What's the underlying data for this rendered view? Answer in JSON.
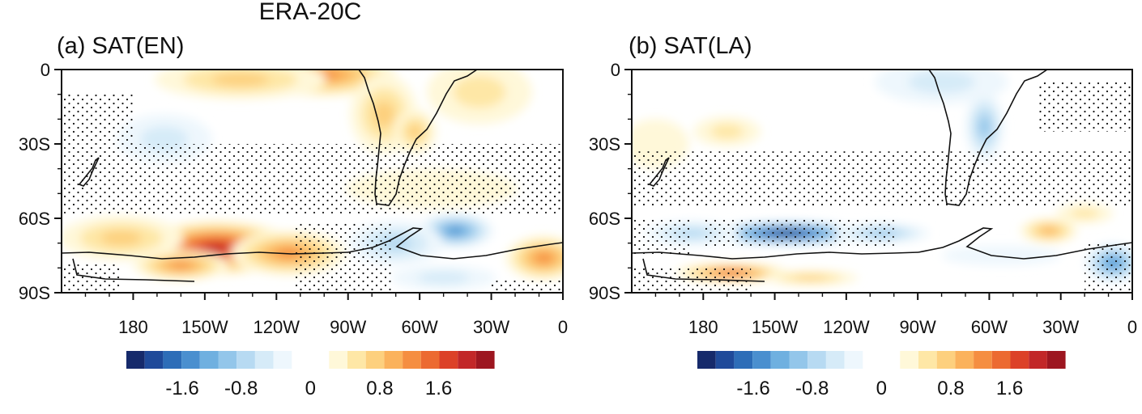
{
  "figure_title": "ERA-20C",
  "chart_data": [
    {
      "type": "heatmap",
      "title": "(a) SAT(EN)",
      "x_ticks": [
        {
          "value": 180,
          "label": "180"
        },
        {
          "value": 210,
          "label": "150W"
        },
        {
          "value": 240,
          "label": "120W"
        },
        {
          "value": 270,
          "label": "90W"
        },
        {
          "value": 300,
          "label": "60W"
        },
        {
          "value": 330,
          "label": "30W"
        },
        {
          "value": 360,
          "label": "0"
        }
      ],
      "y_ticks": [
        {
          "value": 0,
          "label": "0"
        },
        {
          "value": -30,
          "label": "30S"
        },
        {
          "value": -60,
          "label": "60S"
        },
        {
          "value": -90,
          "label": "90S"
        }
      ],
      "xlim": [
        150,
        360
      ],
      "ylim": [
        -90,
        0
      ],
      "field": [
        {
          "lon": 215,
          "lat": -72,
          "value": 2.1,
          "r_lon": 34,
          "r_lat": 11
        },
        {
          "lon": 200,
          "lat": -79,
          "value": 1.3,
          "r_lon": 20,
          "r_lat": 6
        },
        {
          "lon": 245,
          "lat": -74,
          "value": 1.2,
          "r_lon": 24,
          "r_lat": 9
        },
        {
          "lon": 175,
          "lat": -68,
          "value": 0.8,
          "r_lon": 26,
          "r_lat": 9
        },
        {
          "lon": 260,
          "lat": -2,
          "value": 1.3,
          "r_lon": 30,
          "r_lat": 9
        },
        {
          "lon": 225,
          "lat": -4,
          "value": 0.8,
          "r_lon": 36,
          "r_lat": 8
        },
        {
          "lon": 285,
          "lat": -18,
          "value": 0.7,
          "r_lon": 14,
          "r_lat": 16
        },
        {
          "lon": 298,
          "lat": -25,
          "value": 0.7,
          "r_lon": 9,
          "r_lat": 9
        },
        {
          "lon": 325,
          "lat": -9,
          "value": 0.5,
          "r_lon": 22,
          "r_lat": 13
        },
        {
          "lon": 305,
          "lat": -48,
          "value": 0.3,
          "r_lon": 36,
          "r_lat": 8
        },
        {
          "lon": 352,
          "lat": -76,
          "value": 1.3,
          "r_lon": 16,
          "r_lat": 9
        },
        {
          "lon": 193,
          "lat": -28,
          "value": -0.6,
          "r_lon": 20,
          "r_lat": 10
        },
        {
          "lon": 315,
          "lat": -65,
          "value": -1.6,
          "r_lon": 16,
          "r_lat": 7
        },
        {
          "lon": 290,
          "lat": -70,
          "value": -0.8,
          "r_lon": 20,
          "r_lat": 9
        },
        {
          "lon": 310,
          "lat": -84,
          "value": -0.4,
          "r_lon": 22,
          "r_lat": 5
        }
      ],
      "stipple": [
        {
          "lon": [
            150,
            360
          ],
          "lat": [
            -30,
            -58
          ]
        },
        {
          "lon": [
            150,
            180
          ],
          "lat": [
            -10,
            -30
          ]
        },
        {
          "lon": [
            315,
            360
          ],
          "lat": [
            -30,
            -55
          ]
        },
        {
          "lon": [
            150,
            175
          ],
          "lat": [
            -78,
            -90
          ]
        },
        {
          "lon": [
            248,
            288
          ],
          "lat": [
            -62,
            -90
          ]
        },
        {
          "lon": [
            330,
            360
          ],
          "lat": [
            -85,
            -90
          ]
        }
      ]
    },
    {
      "type": "heatmap",
      "title": "(b) SAT(LA)",
      "x_ticks": [
        {
          "value": 180,
          "label": "180"
        },
        {
          "value": 210,
          "label": "150W"
        },
        {
          "value": 240,
          "label": "120W"
        },
        {
          "value": 270,
          "label": "90W"
        },
        {
          "value": 300,
          "label": "60W"
        },
        {
          "value": 330,
          "label": "30W"
        },
        {
          "value": 360,
          "label": "0"
        }
      ],
      "y_ticks": [
        {
          "value": 0,
          "label": "0"
        },
        {
          "value": -30,
          "label": "30S"
        },
        {
          "value": -60,
          "label": "60S"
        },
        {
          "value": -90,
          "label": "90S"
        }
      ],
      "xlim": [
        150,
        360
      ],
      "ylim": [
        -90,
        0
      ],
      "field": [
        {
          "lon": 215,
          "lat": -66,
          "value": -2.2,
          "r_lon": 34,
          "r_lat": 5
        },
        {
          "lon": 175,
          "lat": -66,
          "value": -0.8,
          "r_lon": 20,
          "r_lat": 5
        },
        {
          "lon": 255,
          "lat": -66,
          "value": -1.0,
          "r_lon": 20,
          "r_lat": 4
        },
        {
          "lon": 298,
          "lat": -23,
          "value": -0.9,
          "r_lon": 8,
          "r_lat": 14
        },
        {
          "lon": 280,
          "lat": -5,
          "value": -0.6,
          "r_lon": 28,
          "r_lat": 9
        },
        {
          "lon": 352,
          "lat": -78,
          "value": -1.4,
          "r_lon": 12,
          "r_lat": 8
        },
        {
          "lon": 305,
          "lat": -75,
          "value": -0.3,
          "r_lon": 25,
          "r_lat": 4
        },
        {
          "lon": 192,
          "lat": -82,
          "value": 1.4,
          "r_lon": 24,
          "r_lat": 4
        },
        {
          "lon": 225,
          "lat": -84,
          "value": 0.7,
          "r_lon": 20,
          "r_lat": 3
        },
        {
          "lon": 190,
          "lat": -25,
          "value": 0.4,
          "r_lon": 14,
          "r_lat": 6
        },
        {
          "lon": 325,
          "lat": -65,
          "value": 0.9,
          "r_lon": 12,
          "r_lat": 5
        },
        {
          "lon": 340,
          "lat": -58,
          "value": 0.4,
          "r_lon": 12,
          "r_lat": 4
        },
        {
          "lon": 160,
          "lat": -30,
          "value": 0.3,
          "r_lon": 14,
          "r_lat": 10
        }
      ],
      "stipple": [
        {
          "lon": [
            150,
            360
          ],
          "lat": [
            -33,
            -55
          ]
        },
        {
          "lon": [
            150,
            175
          ],
          "lat": [
            -60,
            -75
          ]
        },
        {
          "lon": [
            180,
            260
          ],
          "lat": [
            -60,
            -72
          ]
        },
        {
          "lon": [
            150,
            200
          ],
          "lat": [
            -80,
            -90
          ]
        },
        {
          "lon": [
            320,
            360
          ],
          "lat": [
            -5,
            -25
          ]
        },
        {
          "lon": [
            340,
            360
          ],
          "lat": [
            -70,
            -90
          ]
        }
      ]
    }
  ],
  "colorbar": {
    "labels": [
      "-1.6",
      "-0.8",
      "0",
      "0.8",
      "1.6"
    ],
    "label_values": [
      -1.6,
      -0.8,
      0,
      0.8,
      1.6
    ],
    "negative_colors": [
      "#162a6b",
      "#1f4a9a",
      "#2d6db8",
      "#4a8fcf",
      "#6fb0e0",
      "#93c6ea",
      "#b7daf2",
      "#d6ebf8",
      "#eef7fd"
    ],
    "positive_colors": [
      "#fff8d9",
      "#fee7a6",
      "#fdd07e",
      "#fbb25c",
      "#f58e41",
      "#ec6a31",
      "#dc4128",
      "#c22728",
      "#9d1620"
    ]
  }
}
